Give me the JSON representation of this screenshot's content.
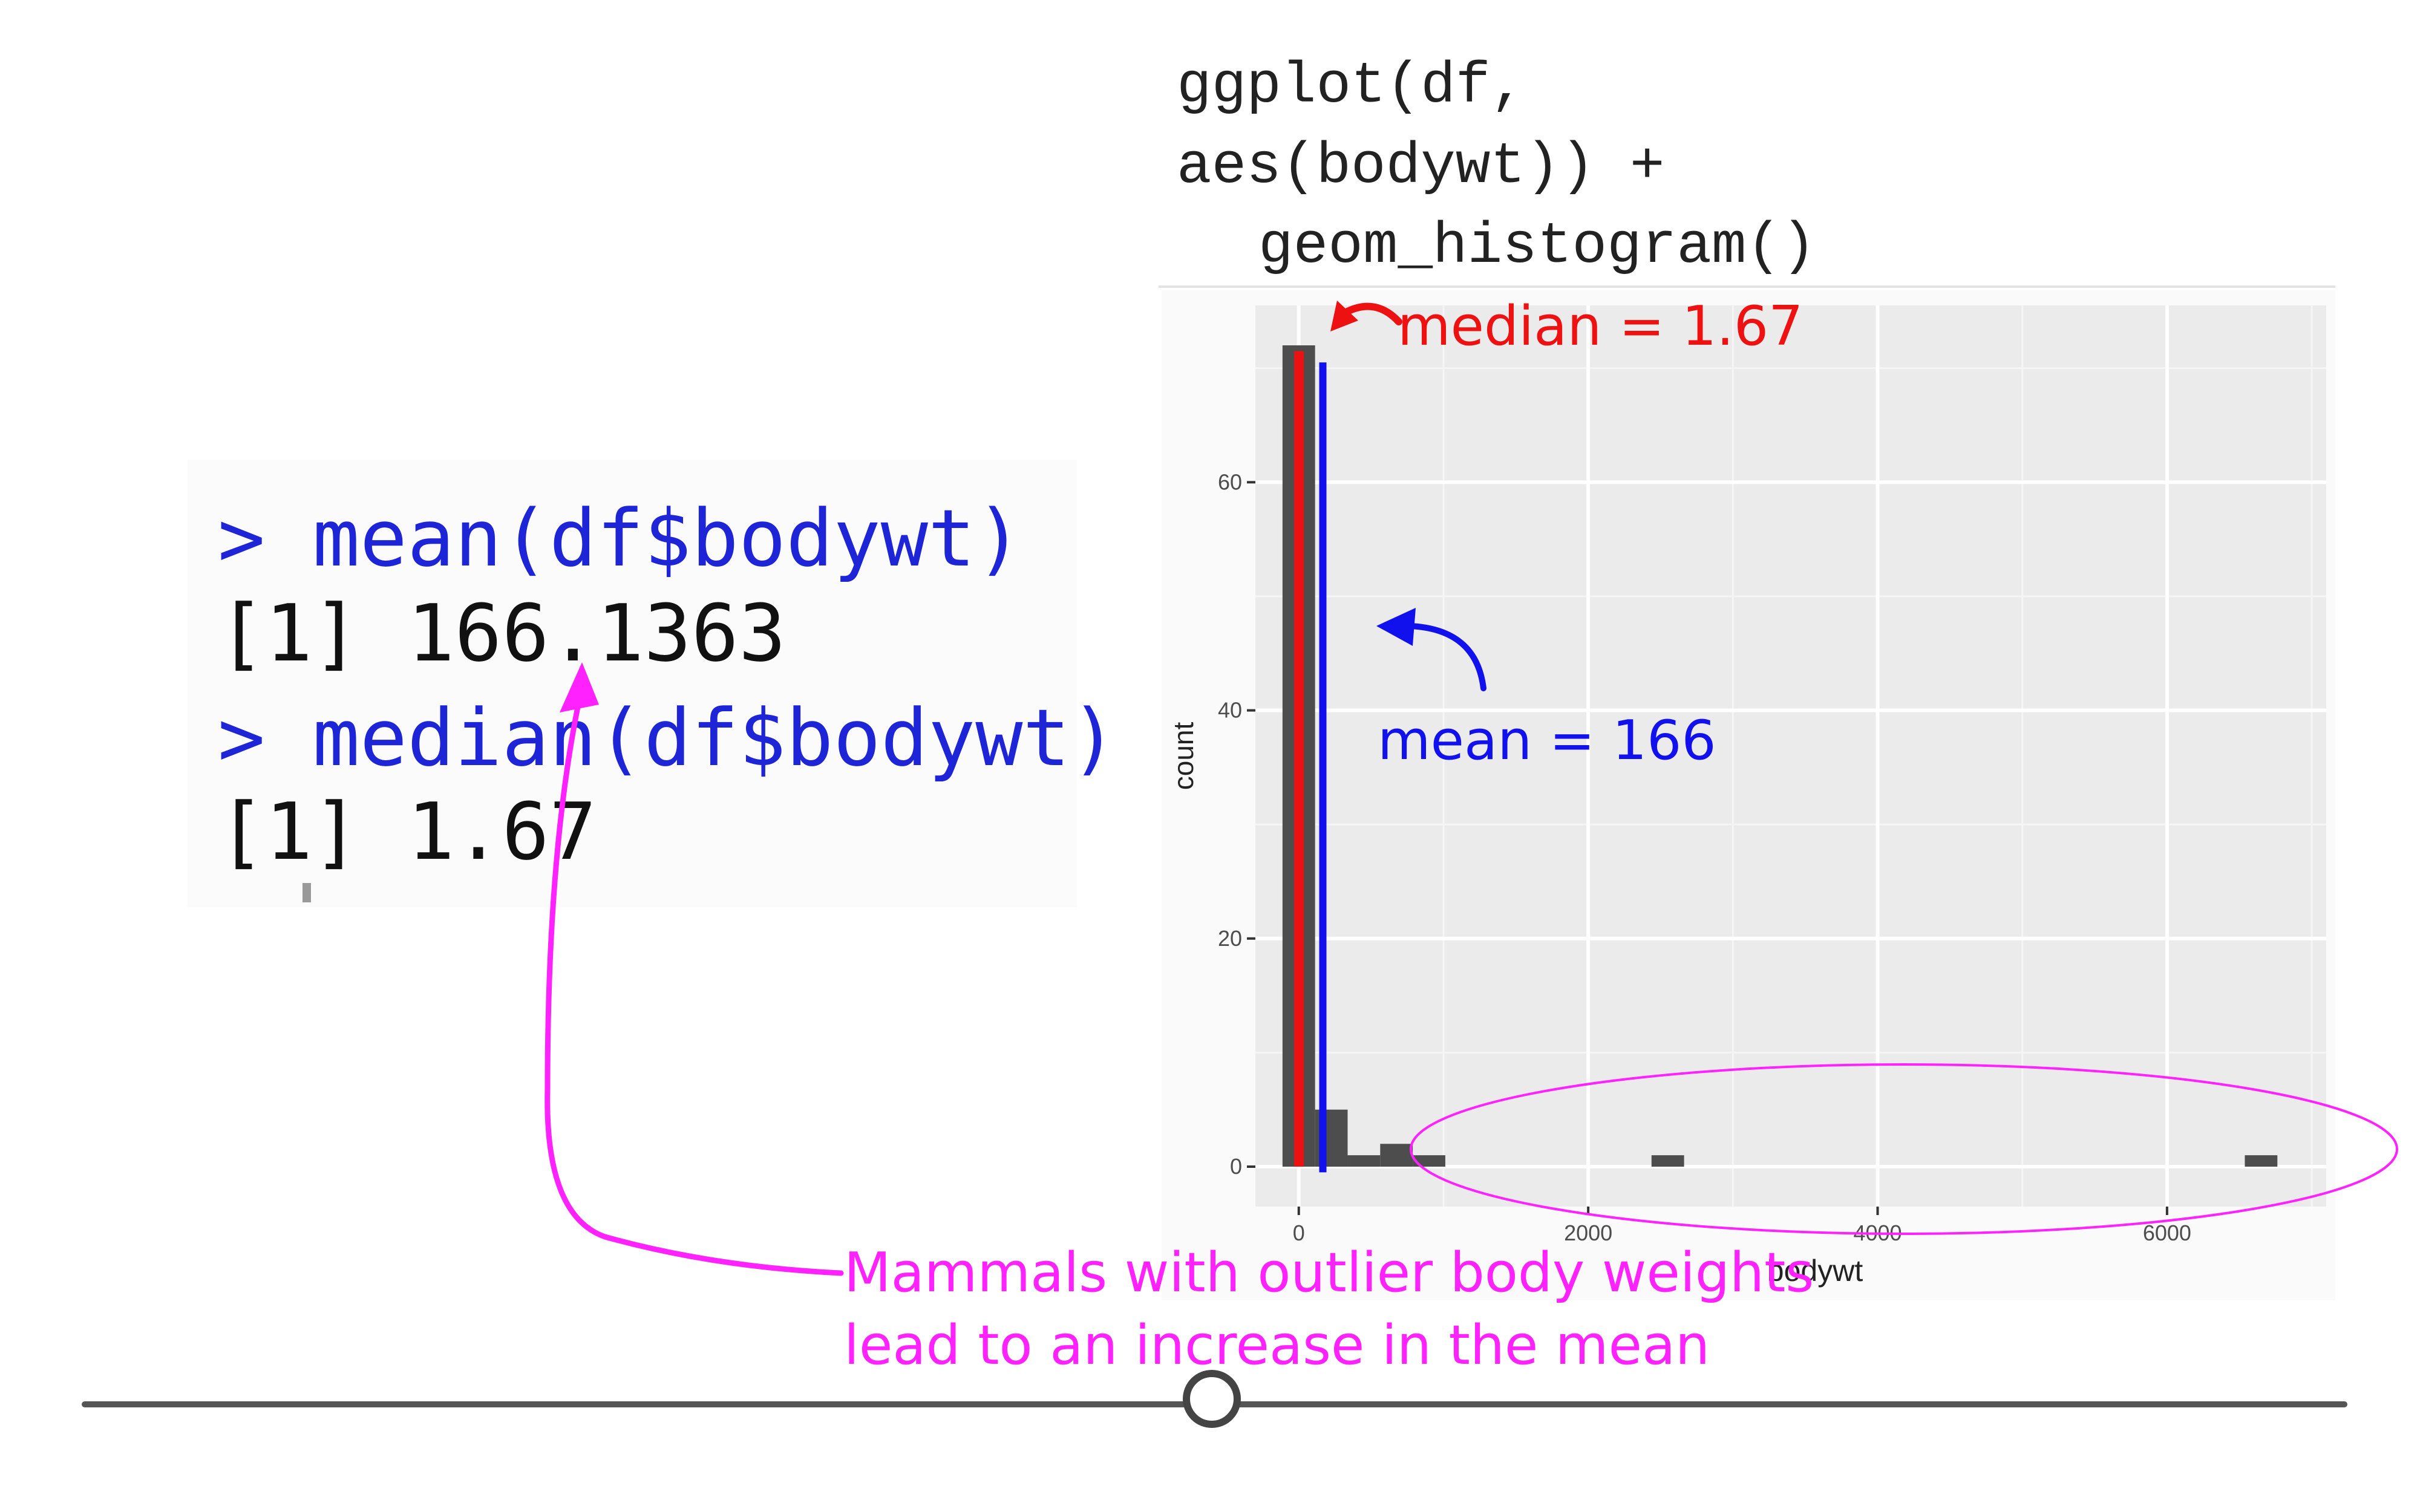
{
  "code": {
    "line1": "ggplot(df,",
    "line2": "aes(bodywt)) +",
    "line3": "geom_histogram()"
  },
  "console": {
    "cmd_mean": "> mean(df$bodywt)",
    "out_mean": "[1] 166.1363",
    "cmd_median": "> median(df$bodywt)",
    "out_median": "[1] 1.67"
  },
  "annotations": {
    "median_label": "median = 1.67",
    "mean_label": "mean = 166",
    "outlier_note_line1": "Mammals with outlier body weights",
    "outlier_note_line2": "lead to an increase in the mean"
  },
  "colors": {
    "median": "#ee1111",
    "mean": "#1111ee",
    "highlight": "#ff22ff",
    "bar": "#4d4d4d",
    "panel": "#ebebeb"
  },
  "chart_data": {
    "type": "bar",
    "xlabel": "bodywt",
    "ylabel": "count",
    "xlim": [
      -300,
      7100
    ],
    "ylim": [
      -3.5,
      75.5
    ],
    "x_ticks": [
      0,
      2000,
      4000,
      6000
    ],
    "y_ticks": [
      0,
      20,
      40,
      60
    ],
    "grid": true,
    "bin_width": 225,
    "bins": [
      {
        "x": 0,
        "count": 72
      },
      {
        "x": 225,
        "count": 5
      },
      {
        "x": 450,
        "count": 1
      },
      {
        "x": 675,
        "count": 2
      },
      {
        "x": 900,
        "count": 1
      },
      {
        "x": 2550,
        "count": 1
      },
      {
        "x": 6650,
        "count": 1
      }
    ],
    "median": 1.67,
    "mean": 166.1363
  },
  "slider": {
    "position": 0.5
  }
}
